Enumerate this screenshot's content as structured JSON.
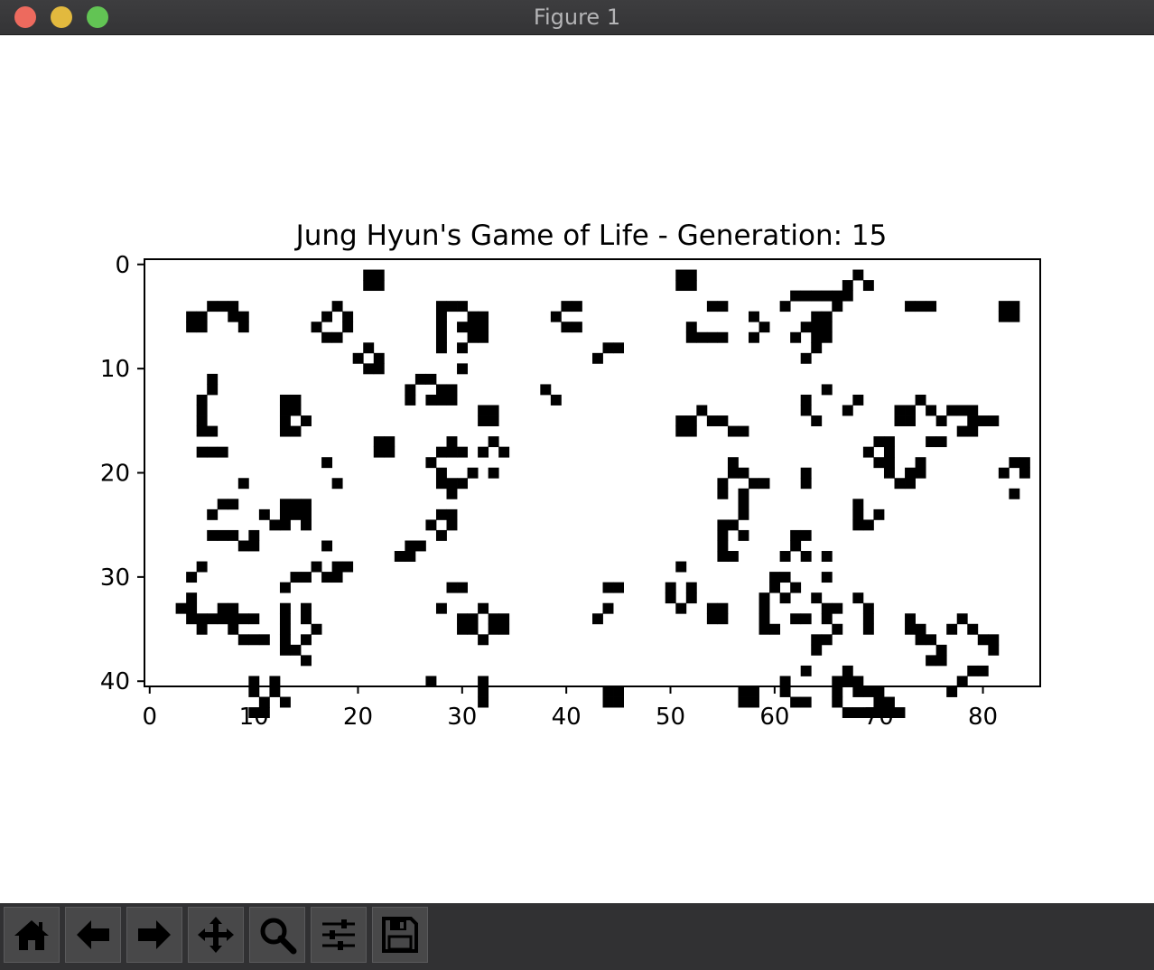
{
  "window": {
    "title": "Figure 1"
  },
  "toolbar": {
    "buttons": [
      {
        "name": "home-icon"
      },
      {
        "name": "back-arrow-icon"
      },
      {
        "name": "forward-arrow-icon"
      },
      {
        "name": "pan-move-icon"
      },
      {
        "name": "zoom-magnifier-icon"
      },
      {
        "name": "configure-subplots-icon"
      },
      {
        "name": "save-floppy-icon"
      }
    ]
  },
  "chart_data": {
    "type": "heatmap",
    "title": "Jung Hyun's Game of Life - Generation: 15",
    "xlabel": "",
    "ylabel": "",
    "xlim": [
      -0.5,
      85.5
    ],
    "ylim": [
      40.5,
      -0.5
    ],
    "x_ticks": [
      0,
      10,
      20,
      30,
      40,
      50,
      60,
      70,
      80
    ],
    "y_ticks": [
      0,
      10,
      20,
      30,
      40
    ],
    "colormap": {
      "0": "#ffffff",
      "1": "#000000"
    },
    "grid": false,
    "live_cells": [
      [
        21,
        1
      ],
      [
        22,
        1
      ],
      [
        21,
        2
      ],
      [
        22,
        2
      ],
      [
        51,
        1
      ],
      [
        52,
        1
      ],
      [
        51,
        2
      ],
      [
        52,
        2
      ],
      [
        68,
        1
      ],
      [
        67,
        2
      ],
      [
        69,
        2
      ],
      [
        62,
        3
      ],
      [
        63,
        3
      ],
      [
        64,
        3
      ],
      [
        65,
        3
      ],
      [
        66,
        3
      ],
      [
        67,
        3
      ],
      [
        66,
        4
      ],
      [
        6,
        4
      ],
      [
        7,
        4
      ],
      [
        8,
        4
      ],
      [
        18,
        4
      ],
      [
        28,
        4
      ],
      [
        29,
        4
      ],
      [
        30,
        4
      ],
      [
        28,
        5
      ],
      [
        31,
        5
      ],
      [
        32,
        5
      ],
      [
        54,
        4
      ],
      [
        55,
        4
      ],
      [
        61,
        4
      ],
      [
        73,
        4
      ],
      [
        74,
        4
      ],
      [
        75,
        4
      ],
      [
        4,
        5
      ],
      [
        5,
        5
      ],
      [
        8,
        5
      ],
      [
        9,
        5
      ],
      [
        40,
        4
      ],
      [
        41,
        4
      ],
      [
        4,
        6
      ],
      [
        5,
        6
      ],
      [
        9,
        6
      ],
      [
        17,
        5
      ],
      [
        19,
        5
      ],
      [
        16,
        6
      ],
      [
        19,
        6
      ],
      [
        28,
        6
      ],
      [
        30,
        6
      ],
      [
        31,
        6
      ],
      [
        32,
        6
      ],
      [
        39,
        5
      ],
      [
        58,
        5
      ],
      [
        64,
        5
      ],
      [
        65,
        5
      ],
      [
        82,
        4
      ],
      [
        83,
        4
      ],
      [
        82,
        5
      ],
      [
        83,
        5
      ],
      [
        28,
        7
      ],
      [
        31,
        7
      ],
      [
        32,
        7
      ],
      [
        40,
        6
      ],
      [
        41,
        6
      ],
      [
        52,
        6
      ],
      [
        59,
        6
      ],
      [
        63,
        6
      ],
      [
        64,
        6
      ],
      [
        65,
        6
      ],
      [
        17,
        7
      ],
      [
        18,
        7
      ],
      [
        52,
        7
      ],
      [
        53,
        7
      ],
      [
        54,
        7
      ],
      [
        55,
        7
      ],
      [
        58,
        7
      ],
      [
        62,
        7
      ],
      [
        64,
        7
      ],
      [
        65,
        7
      ],
      [
        21,
        8
      ],
      [
        28,
        8
      ],
      [
        30,
        8
      ],
      [
        44,
        8
      ],
      [
        45,
        8
      ],
      [
        64,
        8
      ],
      [
        20,
        9
      ],
      [
        22,
        9
      ],
      [
        43,
        9
      ],
      [
        63,
        9
      ],
      [
        21,
        10
      ],
      [
        22,
        10
      ],
      [
        27,
        11
      ],
      [
        26,
        11
      ],
      [
        30,
        10
      ],
      [
        6,
        11
      ],
      [
        6,
        12
      ],
      [
        5,
        13
      ],
      [
        25,
        12
      ],
      [
        28,
        12
      ],
      [
        29,
        12
      ],
      [
        25,
        13
      ],
      [
        27,
        13
      ],
      [
        28,
        13
      ],
      [
        29,
        13
      ],
      [
        38,
        12
      ],
      [
        39,
        13
      ],
      [
        65,
        12
      ],
      [
        63,
        13
      ],
      [
        13,
        13
      ],
      [
        14,
        13
      ],
      [
        74,
        13
      ],
      [
        72,
        14
      ],
      [
        73,
        14
      ],
      [
        75,
        14
      ],
      [
        5,
        14
      ],
      [
        13,
        14
      ],
      [
        14,
        14
      ],
      [
        32,
        14
      ],
      [
        33,
        14
      ],
      [
        53,
        14
      ],
      [
        63,
        14
      ],
      [
        68,
        13
      ],
      [
        67,
        14
      ],
      [
        77,
        14
      ],
      [
        78,
        14
      ],
      [
        79,
        14
      ],
      [
        5,
        15
      ],
      [
        13,
        15
      ],
      [
        15,
        15
      ],
      [
        32,
        15
      ],
      [
        33,
        15
      ],
      [
        51,
        15
      ],
      [
        52,
        15
      ],
      [
        54,
        15
      ],
      [
        55,
        15
      ],
      [
        64,
        15
      ],
      [
        72,
        15
      ],
      [
        73,
        15
      ],
      [
        76,
        15
      ],
      [
        79,
        15
      ],
      [
        80,
        15
      ],
      [
        81,
        15
      ],
      [
        5,
        16
      ],
      [
        6,
        16
      ],
      [
        13,
        16
      ],
      [
        14,
        16
      ],
      [
        51,
        16
      ],
      [
        52,
        16
      ],
      [
        56,
        16
      ],
      [
        57,
        16
      ],
      [
        78,
        16
      ],
      [
        79,
        16
      ],
      [
        22,
        17
      ],
      [
        23,
        17
      ],
      [
        22,
        18
      ],
      [
        23,
        18
      ],
      [
        29,
        17
      ],
      [
        33,
        17
      ],
      [
        70,
        17
      ],
      [
        71,
        17
      ],
      [
        75,
        17
      ],
      [
        76,
        17
      ],
      [
        5,
        18
      ],
      [
        6,
        18
      ],
      [
        7,
        18
      ],
      [
        28,
        18
      ],
      [
        29,
        18
      ],
      [
        30,
        18
      ],
      [
        32,
        18
      ],
      [
        34,
        18
      ],
      [
        69,
        18
      ],
      [
        71,
        18
      ],
      [
        17,
        19
      ],
      [
        27,
        19
      ],
      [
        56,
        19
      ],
      [
        70,
        19
      ],
      [
        71,
        19
      ],
      [
        74,
        19
      ],
      [
        83,
        19
      ],
      [
        84,
        19
      ],
      [
        28,
        20
      ],
      [
        31,
        20
      ],
      [
        33,
        20
      ],
      [
        56,
        20
      ],
      [
        57,
        20
      ],
      [
        63,
        20
      ],
      [
        71,
        20
      ],
      [
        73,
        20
      ],
      [
        74,
        20
      ],
      [
        82,
        20
      ],
      [
        84,
        20
      ],
      [
        18,
        21
      ],
      [
        28,
        21
      ],
      [
        29,
        21
      ],
      [
        30,
        21
      ],
      [
        55,
        21
      ],
      [
        58,
        21
      ],
      [
        59,
        21
      ],
      [
        63,
        21
      ],
      [
        72,
        21
      ],
      [
        73,
        21
      ],
      [
        9,
        21
      ],
      [
        29,
        22
      ],
      [
        55,
        22
      ],
      [
        57,
        22
      ],
      [
        83,
        22
      ],
      [
        7,
        23
      ],
      [
        8,
        23
      ],
      [
        13,
        23
      ],
      [
        14,
        23
      ],
      [
        15,
        23
      ],
      [
        57,
        23
      ],
      [
        68,
        23
      ],
      [
        6,
        24
      ],
      [
        11,
        24
      ],
      [
        13,
        24
      ],
      [
        14,
        24
      ],
      [
        15,
        24
      ],
      [
        28,
        24
      ],
      [
        29,
        24
      ],
      [
        57,
        24
      ],
      [
        68,
        24
      ],
      [
        70,
        24
      ],
      [
        12,
        25
      ],
      [
        13,
        25
      ],
      [
        15,
        25
      ],
      [
        27,
        25
      ],
      [
        29,
        25
      ],
      [
        55,
        25
      ],
      [
        56,
        25
      ],
      [
        68,
        25
      ],
      [
        69,
        25
      ],
      [
        6,
        26
      ],
      [
        7,
        26
      ],
      [
        8,
        26
      ],
      [
        10,
        26
      ],
      [
        28,
        26
      ],
      [
        55,
        26
      ],
      [
        57,
        26
      ],
      [
        62,
        26
      ],
      [
        63,
        26
      ],
      [
        9,
        27
      ],
      [
        10,
        27
      ],
      [
        17,
        27
      ],
      [
        25,
        27
      ],
      [
        26,
        27
      ],
      [
        55,
        27
      ],
      [
        62,
        27
      ],
      [
        24,
        28
      ],
      [
        25,
        28
      ],
      [
        55,
        28
      ],
      [
        56,
        28
      ],
      [
        61,
        28
      ],
      [
        63,
        28
      ],
      [
        65,
        28
      ],
      [
        5,
        29
      ],
      [
        16,
        29
      ],
      [
        18,
        29
      ],
      [
        19,
        29
      ],
      [
        51,
        29
      ],
      [
        14,
        30
      ],
      [
        15,
        30
      ],
      [
        17,
        30
      ],
      [
        18,
        30
      ],
      [
        60,
        30
      ],
      [
        61,
        30
      ],
      [
        65,
        30
      ],
      [
        4,
        30
      ],
      [
        13,
        31
      ],
      [
        50,
        31
      ],
      [
        52,
        31
      ],
      [
        60,
        31
      ],
      [
        62,
        31
      ],
      [
        4,
        32
      ],
      [
        13,
        31
      ],
      [
        29,
        31
      ],
      [
        30,
        31
      ],
      [
        44,
        31
      ],
      [
        45,
        31
      ],
      [
        50,
        32
      ],
      [
        52,
        32
      ],
      [
        59,
        32
      ],
      [
        61,
        32
      ],
      [
        64,
        32
      ],
      [
        68,
        32
      ],
      [
        3,
        33
      ],
      [
        4,
        33
      ],
      [
        7,
        33
      ],
      [
        8,
        33
      ],
      [
        13,
        33
      ],
      [
        15,
        33
      ],
      [
        28,
        33
      ],
      [
        32,
        33
      ],
      [
        44,
        33
      ],
      [
        51,
        33
      ],
      [
        54,
        33
      ],
      [
        55,
        33
      ],
      [
        59,
        33
      ],
      [
        65,
        33
      ],
      [
        66,
        33
      ],
      [
        69,
        33
      ],
      [
        4,
        34
      ],
      [
        6,
        34
      ],
      [
        7,
        34
      ],
      [
        8,
        34
      ],
      [
        9,
        34
      ],
      [
        10,
        34
      ],
      [
        13,
        34
      ],
      [
        15,
        34
      ],
      [
        30,
        34
      ],
      [
        31,
        34
      ],
      [
        33,
        34
      ],
      [
        34,
        34
      ],
      [
        43,
        34
      ],
      [
        54,
        34
      ],
      [
        55,
        34
      ],
      [
        59,
        34
      ],
      [
        62,
        34
      ],
      [
        63,
        34
      ],
      [
        65,
        34
      ],
      [
        69,
        34
      ],
      [
        73,
        34
      ],
      [
        78,
        34
      ],
      [
        5,
        35
      ],
      [
        8,
        35
      ],
      [
        13,
        35
      ],
      [
        16,
        35
      ],
      [
        30,
        35
      ],
      [
        31,
        35
      ],
      [
        33,
        35
      ],
      [
        34,
        35
      ],
      [
        59,
        35
      ],
      [
        60,
        35
      ],
      [
        73,
        35
      ],
      [
        74,
        35
      ],
      [
        77,
        35
      ],
      [
        79,
        35
      ],
      [
        9,
        36
      ],
      [
        10,
        36
      ],
      [
        11,
        36
      ],
      [
        13,
        36
      ],
      [
        15,
        36
      ],
      [
        32,
        36
      ],
      [
        66,
        35
      ],
      [
        69,
        35
      ],
      [
        74,
        36
      ],
      [
        75,
        36
      ],
      [
        80,
        36
      ],
      [
        81,
        36
      ],
      [
        13,
        37
      ],
      [
        14,
        37
      ],
      [
        64,
        36
      ],
      [
        65,
        36
      ],
      [
        81,
        37
      ],
      [
        76,
        37
      ],
      [
        64,
        37
      ],
      [
        5,
        34
      ],
      [
        75,
        38
      ],
      [
        76,
        38
      ],
      [
        15,
        38
      ],
      [
        63,
        39
      ],
      [
        67,
        39
      ],
      [
        79,
        39
      ],
      [
        80,
        39
      ],
      [
        10,
        40
      ],
      [
        12,
        40
      ],
      [
        27,
        40
      ],
      [
        32,
        40
      ],
      [
        61,
        40
      ],
      [
        66,
        40
      ],
      [
        67,
        40
      ],
      [
        68,
        40
      ],
      [
        78,
        40
      ],
      [
        10,
        41
      ],
      [
        12,
        41
      ],
      [
        32,
        41
      ],
      [
        44,
        41
      ],
      [
        45,
        41
      ],
      [
        57,
        41
      ],
      [
        58,
        41
      ],
      [
        61,
        41
      ],
      [
        66,
        41
      ],
      [
        68,
        41
      ],
      [
        69,
        41
      ],
      [
        70,
        41
      ],
      [
        77,
        41
      ],
      [
        11,
        42
      ],
      [
        13,
        42
      ],
      [
        32,
        42
      ],
      [
        44,
        42
      ],
      [
        45,
        42
      ],
      [
        57,
        42
      ],
      [
        58,
        42
      ],
      [
        62,
        42
      ],
      [
        63,
        42
      ],
      [
        66,
        42
      ],
      [
        70,
        42
      ],
      [
        71,
        42
      ],
      [
        10,
        43
      ],
      [
        11,
        43
      ],
      [
        67,
        43
      ],
      [
        68,
        43
      ],
      [
        69,
        43
      ],
      [
        70,
        43
      ],
      [
        71,
        43
      ],
      [
        72,
        43
      ]
    ]
  }
}
